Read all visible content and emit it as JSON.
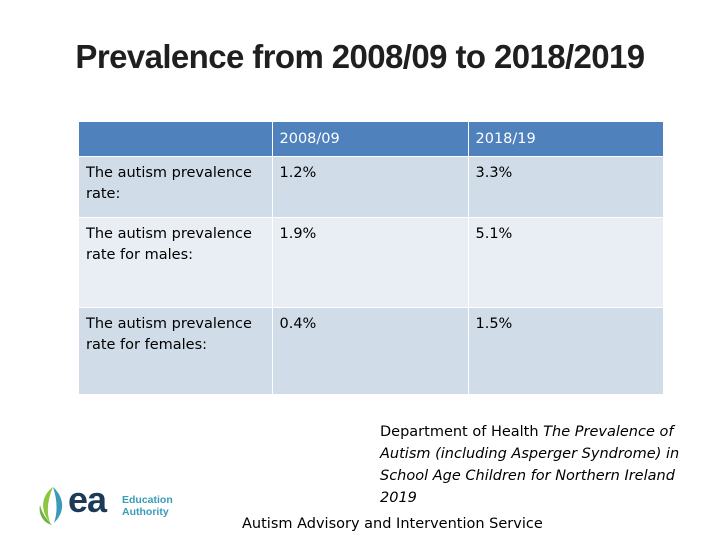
{
  "slide": {
    "title": "Prevalence  from 2008/09 to 2018/2019"
  },
  "table": {
    "headers": [
      "",
      "2008/09",
      "2018/19"
    ],
    "rows": [
      {
        "label": "The autism prevalence rate:",
        "v2008": "1.2%",
        "v2018": "3.3%"
      },
      {
        "label": "The autism prevalence rate for males:",
        "v2008": "1.9%",
        "v2018": "5.1%"
      },
      {
        "label": "The autism prevalence rate for females:",
        "v2008": "0.4%",
        "v2018": "1.5%"
      }
    ]
  },
  "citation": {
    "prefix": "Department of Health ",
    "title": "The Prevalence of Autism (including Asperger Syndrome) in School Age Children for Northern Ireland 2019"
  },
  "footer": {
    "service": "Autism Advisory and Intervention Service"
  },
  "logo": {
    "mark": "ea",
    "line1": "Education",
    "line2": "Authority",
    "icon": "leaf-icon",
    "colors": {
      "leaf_green": "#8dc63f",
      "leaf_teal": "#3a9bb8",
      "text_dark": "#1b3a57"
    }
  },
  "colors": {
    "header_bg": "#4f81bd",
    "row_dark": "#d0dde8",
    "row_light": "#e9eef4"
  }
}
